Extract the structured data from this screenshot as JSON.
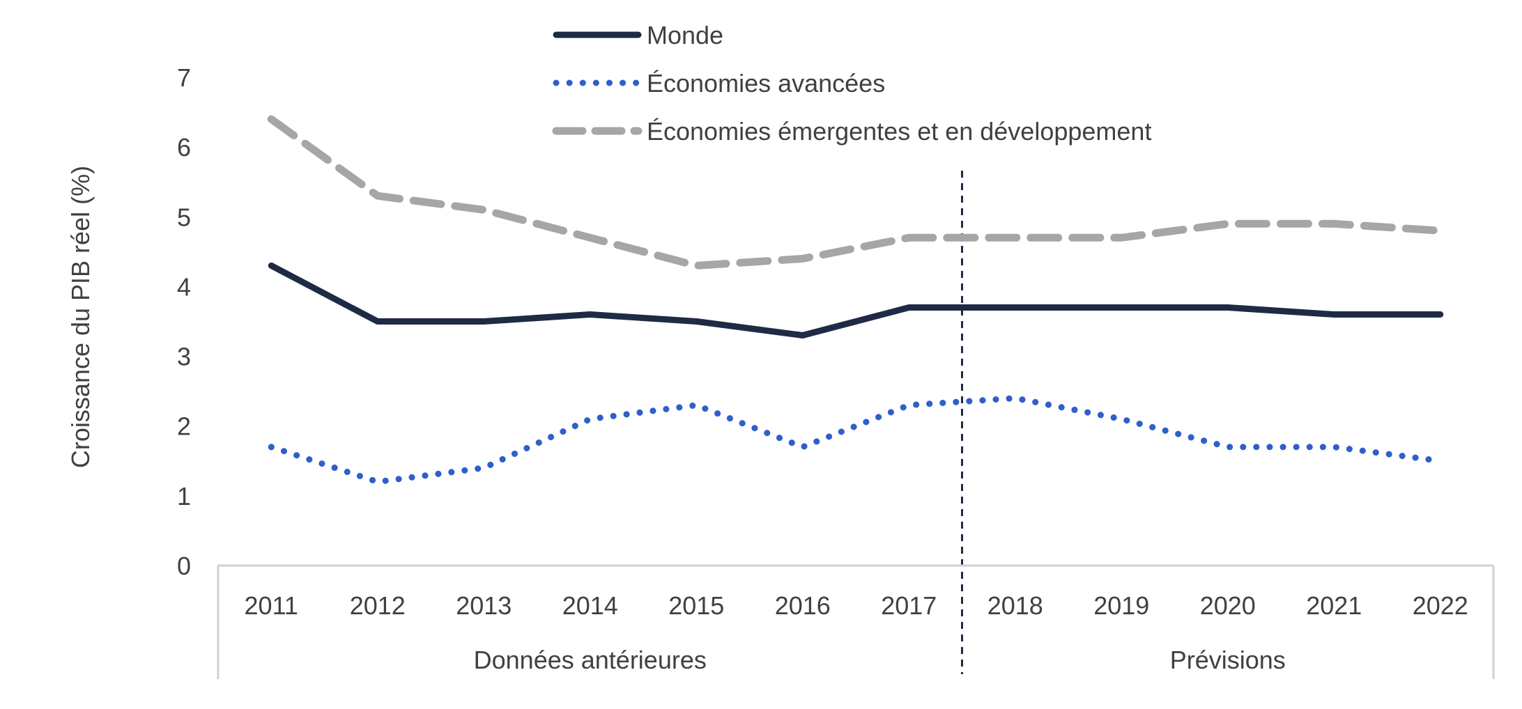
{
  "chart_data": {
    "type": "line",
    "ylabel": "Croissance du PIB réel (%)",
    "ylim": [
      0,
      7
    ],
    "yticks": [
      "0",
      "1",
      "2",
      "3",
      "4",
      "5",
      "6",
      "7"
    ],
    "categories": [
      "2011",
      "2012",
      "2013",
      "2014",
      "2015",
      "2016",
      "2017",
      "2018",
      "2019",
      "2020",
      "2021",
      "2022"
    ],
    "groups": [
      {
        "label": "Données antérieures",
        "from": "2011",
        "to": "2017"
      },
      {
        "label": "Prévisions",
        "from": "2018",
        "to": "2022"
      }
    ],
    "legend_position": "top",
    "grid": false,
    "series": [
      {
        "name": "Monde",
        "color": "#1f2a44",
        "style": "solid",
        "values": [
          4.3,
          3.5,
          3.5,
          3.6,
          3.5,
          3.3,
          3.7,
          3.7,
          3.7,
          3.7,
          3.6,
          3.6
        ]
      },
      {
        "name": "Économies avancées",
        "color": "#2f5fca",
        "style": "dotted",
        "values": [
          1.7,
          1.2,
          1.4,
          2.1,
          2.3,
          1.7,
          2.3,
          2.4,
          2.1,
          1.7,
          1.7,
          1.5
        ]
      },
      {
        "name": "Économies émergentes et en développement",
        "color": "#a6a6a6",
        "style": "dashed",
        "values": [
          6.4,
          5.3,
          5.1,
          4.7,
          4.3,
          4.4,
          4.7,
          4.7,
          4.7,
          4.9,
          4.9,
          4.8
        ]
      }
    ]
  }
}
